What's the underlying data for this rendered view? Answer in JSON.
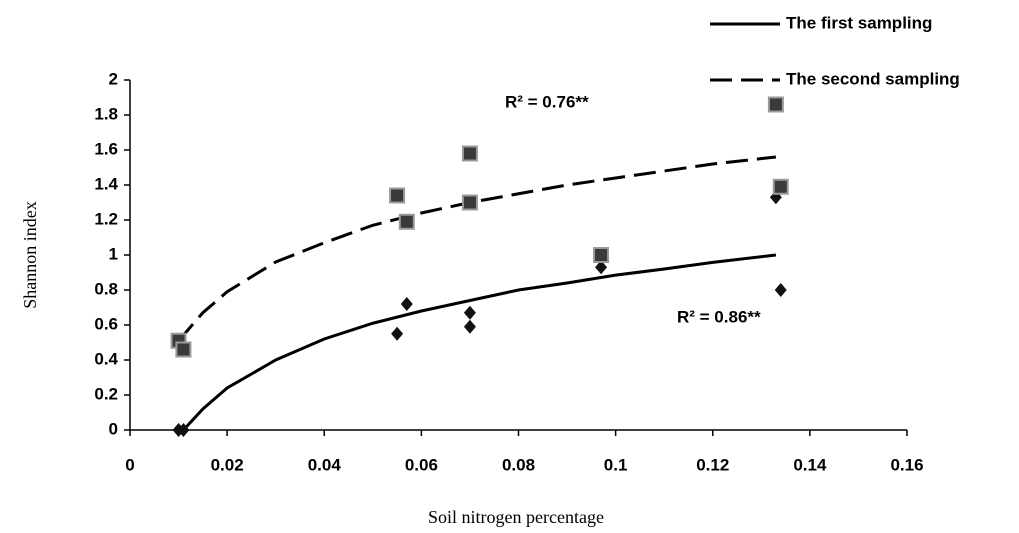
{
  "chart_data": {
    "type": "scatter",
    "x_label": "Soil nitrogen percentage",
    "y_label": "Shannon index",
    "xlim": [
      0,
      0.16
    ],
    "xticks": [
      0,
      0.02,
      0.04,
      0.06,
      0.08,
      0.1,
      0.12,
      0.14,
      0.16
    ],
    "ylim": [
      0,
      2
    ],
    "yticks": [
      0,
      0.2,
      0.4,
      0.6,
      0.8,
      1,
      1.2,
      1.4,
      1.6,
      1.8,
      2
    ],
    "grid": false,
    "legend": "top-right",
    "series": [
      {
        "name": "The first sampling",
        "color": "#000000",
        "marker": "diamond",
        "line": "solid",
        "x": [
          0.01,
          0.011,
          0.055,
          0.057,
          0.07,
          0.07,
          0.097,
          0.133,
          0.134
        ],
        "values": [
          0.0,
          0.0,
          0.55,
          0.72,
          0.67,
          0.59,
          0.93,
          1.33,
          0.8
        ],
        "trend": {
          "x": [
            0.011,
            0.015,
            0.02,
            0.03,
            0.04,
            0.05,
            0.06,
            0.07,
            0.08,
            0.09,
            0.1,
            0.11,
            0.12,
            0.133
          ],
          "values": [
            0.0,
            0.12,
            0.24,
            0.4,
            0.52,
            0.61,
            0.68,
            0.74,
            0.8,
            0.84,
            0.885,
            0.92,
            0.958,
            1.0
          ]
        },
        "r2_label": "R² = 0.86**"
      },
      {
        "name": "The second sampling",
        "color": "#000000",
        "marker": "square",
        "line": "dashed",
        "x": [
          0.01,
          0.011,
          0.055,
          0.057,
          0.07,
          0.07,
          0.097,
          0.133,
          0.134
        ],
        "values": [
          0.51,
          0.46,
          1.34,
          1.19,
          1.58,
          1.3,
          1.0,
          1.86,
          1.39
        ],
        "trend": {
          "x": [
            0.01,
            0.015,
            0.02,
            0.03,
            0.04,
            0.05,
            0.06,
            0.07,
            0.08,
            0.09,
            0.1,
            0.11,
            0.12,
            0.133
          ],
          "values": [
            0.51,
            0.67,
            0.79,
            0.96,
            1.07,
            1.17,
            1.24,
            1.3,
            1.35,
            1.4,
            1.44,
            1.48,
            1.52,
            1.56
          ]
        },
        "r2_label": "R² = 0.76**"
      }
    ]
  }
}
